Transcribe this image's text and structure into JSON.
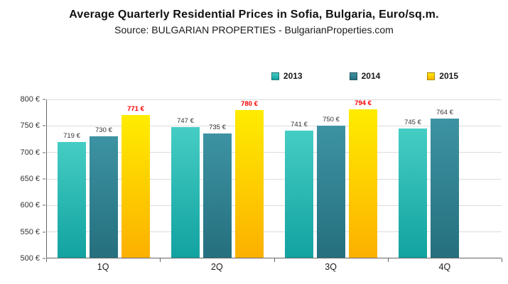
{
  "chart_data": {
    "type": "bar",
    "title": "Average Quarterly Residential Prices in Sofia, Bulgaria, Euro/sq.m.",
    "subtitle": "Source: BULGARIAN PROPERTIES - BulgarianProperties.com",
    "categories": [
      "1Q",
      "2Q",
      "3Q",
      "4Q"
    ],
    "series": [
      {
        "name": "2013",
        "values": [
          719,
          747,
          741,
          745
        ],
        "labels": [
          "719 €",
          "747 €",
          "741 €",
          "745 €"
        ],
        "color_top": "#45cdc4",
        "color_bottom": "#12a2a0",
        "label_color": "#333333",
        "label_bold": false
      },
      {
        "name": "2014",
        "values": [
          730,
          735,
          750,
          764
        ],
        "labels": [
          "730 €",
          "735 €",
          "750 €",
          "764 €"
        ],
        "color_top": "#3d93a3",
        "color_bottom": "#256f7e",
        "label_color": "#333333",
        "label_bold": false
      },
      {
        "name": "2015",
        "values": [
          771,
          780,
          794,
          null
        ],
        "labels": [
          "771 €",
          "780 €",
          "794 €",
          null
        ],
        "color_top": "#ffec00",
        "color_bottom": "#fcb000",
        "label_color": "#ff0000",
        "label_bold": true
      }
    ],
    "ylim": [
      500,
      800
    ],
    "ytick_step": 50,
    "yticks": [
      "500 €",
      "550 €",
      "600 €",
      "650 €",
      "700 €",
      "750 €",
      "800 €"
    ],
    "grid": true,
    "legend_position": "top-right"
  }
}
